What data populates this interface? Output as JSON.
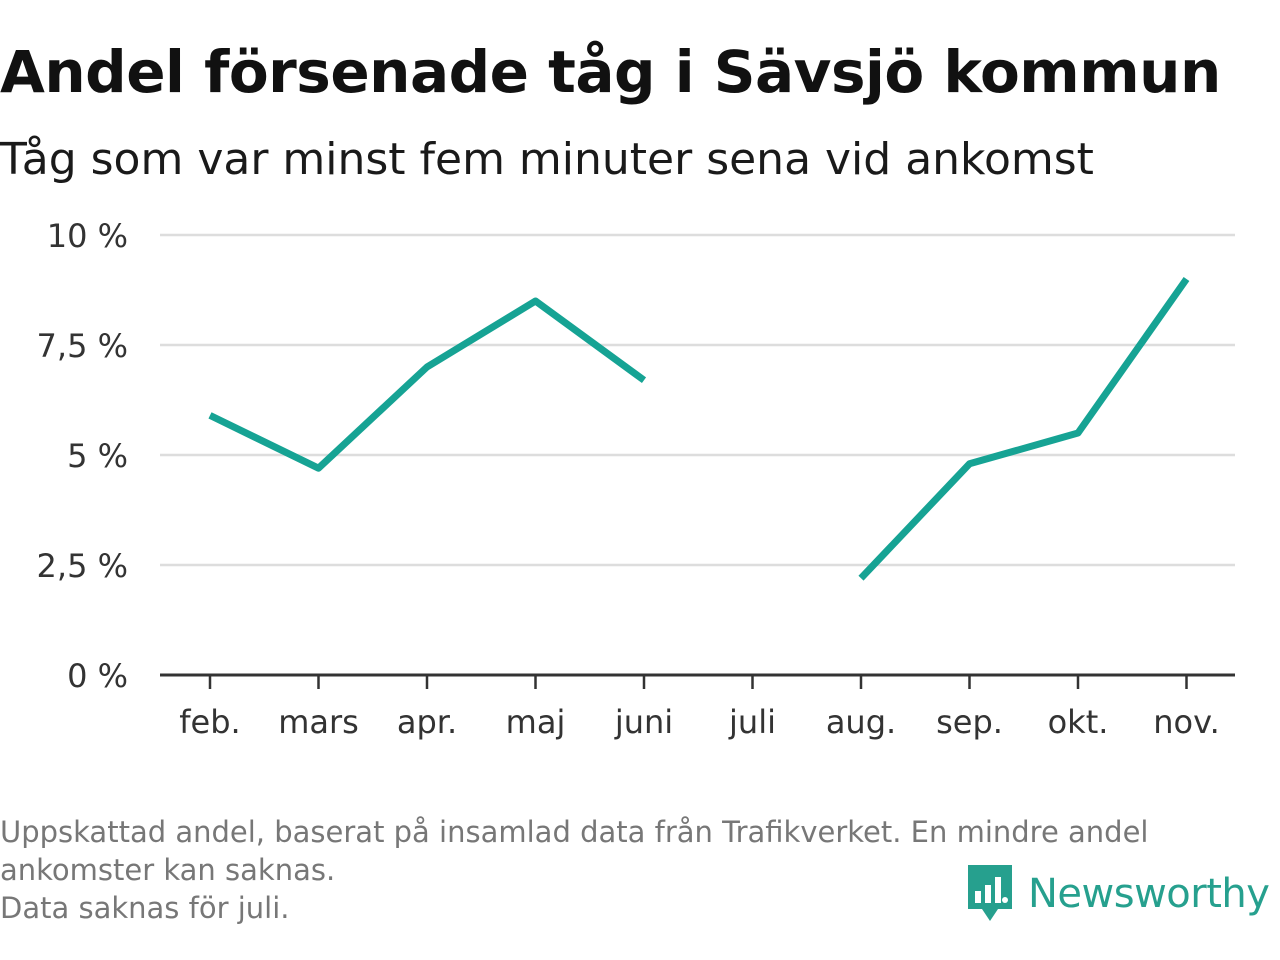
{
  "chart_data": {
    "type": "line",
    "title": "Andel försenade tåg i Sävsjö kommun",
    "subtitle": "Tåg som var minst fem minuter sena vid ankomst",
    "categories": [
      "feb.",
      "mars",
      "apr.",
      "maj",
      "juni",
      "juli",
      "aug.",
      "sep.",
      "okt.",
      "nov."
    ],
    "series": [
      {
        "values": [
          5.9,
          4.7,
          7.0,
          8.5,
          6.7,
          null,
          2.2,
          4.8,
          5.5,
          9.0
        ]
      }
    ],
    "yticks": [
      {
        "value": 0,
        "label": "0 %"
      },
      {
        "value": 2.5,
        "label": "2,5 %"
      },
      {
        "value": 5,
        "label": "5 %"
      },
      {
        "value": 7.5,
        "label": "7,5 %"
      },
      {
        "value": 10,
        "label": "10 %"
      }
    ],
    "ylim": [
      0,
      10
    ],
    "grid": true,
    "line_color": "#16a394"
  },
  "footnote": {
    "line1": "Uppskattad andel, baserat på insamlad data från Trafikverket. En mindre andel",
    "line2": "ankomster kan saknas.",
    "line3": "Data saknas för juli."
  },
  "brand": {
    "name": "Newsworthy",
    "icon": "newsworthy-logo-icon",
    "color": "#26a08e"
  }
}
